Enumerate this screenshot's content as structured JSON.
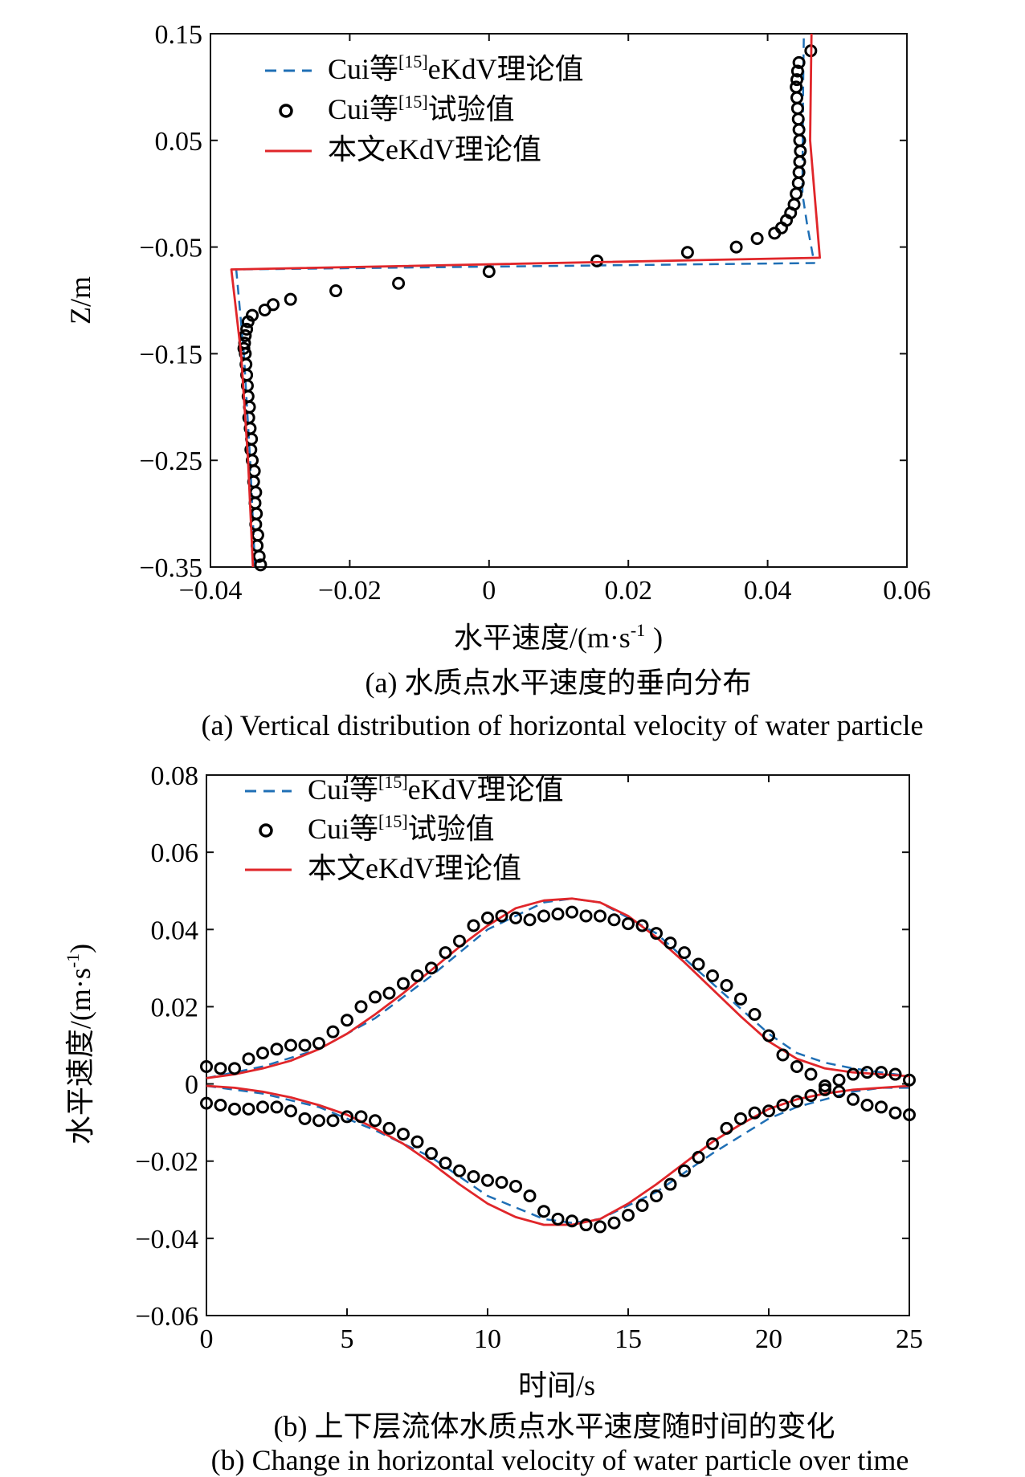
{
  "chart_data": [
    {
      "type": "line",
      "xlabel": "水平速度/(m·s",
      "xlabel_sup": "-1",
      "xlabel_end": ")",
      "ylabel": "Z/m",
      "xlim": [
        -0.04,
        0.06
      ],
      "ylim": [
        -0.35,
        0.15
      ],
      "xticks": [
        -0.04,
        -0.02,
        0,
        0.02,
        0.04,
        0.06
      ],
      "xtick_labels": [
        "−0.04",
        "−0.02",
        "0",
        "0.02",
        "0.04",
        "0.06"
      ],
      "yticks": [
        0.15,
        0.05,
        -0.05,
        -0.15,
        -0.25,
        -0.35
      ],
      "ytick_labels": [
        "0.15",
        "0.05",
        "−0.05",
        "−0.15",
        "−0.25",
        "−0.35"
      ],
      "caption_cn": "(a) 水质点水平速度的垂向分布",
      "caption_en": "(a) Vertical distribution of horizontal velocity of water particle",
      "legend_position": "top-left",
      "legend": [
        {
          "pre": "Cui等",
          "sup": "[15]",
          "post": "eKdV理论值",
          "style": "dashed",
          "color": "#1f6fb5"
        },
        {
          "pre": "Cui等",
          "sup": "[15]",
          "post": "试验值",
          "style": "circle",
          "color": "#000000"
        },
        {
          "pre": "本文eKdV理论值",
          "sup": "",
          "post": "",
          "style": "solid",
          "color": "#e0262a"
        }
      ],
      "series": [
        {
          "name": "Cui等[15]eKdV理论值",
          "style": "dashed",
          "color": "#1f6fb5",
          "x": [
            -0.0336,
            -0.0343,
            -0.0352,
            -0.0363,
            0.0467,
            0.0457,
            0.045,
            0.0451,
            0.0452
          ],
          "y": [
            -0.35,
            -0.25,
            -0.15,
            -0.071,
            -0.065,
            -0.03,
            0.0,
            0.1,
            0.15
          ]
        },
        {
          "name": "Cui等[15]试验值",
          "style": "circle",
          "color": "#000000",
          "x": [
            -0.0328,
            -0.033,
            -0.0333,
            -0.0332,
            -0.0335,
            -0.0334,
            -0.0336,
            -0.0335,
            -0.0338,
            -0.0337,
            -0.034,
            -0.0342,
            -0.0341,
            -0.0343,
            -0.0345,
            -0.0344,
            -0.0346,
            -0.0347,
            -0.0348,
            -0.0349,
            -0.035,
            -0.0352,
            -0.0351,
            -0.035,
            -0.0348,
            -0.0346,
            -0.034,
            -0.0322,
            -0.031,
            -0.0285,
            -0.022,
            -0.013,
            0.0,
            0.0155,
            0.0285,
            0.0355,
            0.0385,
            0.041,
            0.042,
            0.0427,
            0.0433,
            0.0438,
            0.0441,
            0.0444,
            0.0445,
            0.0446,
            0.0447,
            0.0446,
            0.0445,
            0.0444,
            0.0443,
            0.0442,
            0.0441,
            0.0442,
            0.0443,
            0.0445,
            0.0462
          ],
          "y": [
            -0.348,
            -0.34,
            -0.33,
            -0.32,
            -0.31,
            -0.3,
            -0.29,
            -0.28,
            -0.27,
            -0.26,
            -0.25,
            -0.24,
            -0.23,
            -0.22,
            -0.21,
            -0.2,
            -0.19,
            -0.18,
            -0.17,
            -0.16,
            -0.15,
            -0.145,
            -0.14,
            -0.133,
            -0.127,
            -0.12,
            -0.114,
            -0.109,
            -0.104,
            -0.099,
            -0.091,
            -0.084,
            -0.073,
            -0.063,
            -0.055,
            -0.05,
            -0.042,
            -0.037,
            -0.032,
            -0.025,
            -0.018,
            -0.01,
            0.0,
            0.01,
            0.02,
            0.03,
            0.04,
            0.05,
            0.06,
            0.07,
            0.08,
            0.09,
            0.1,
            0.107,
            0.115,
            0.123,
            0.134
          ]
        },
        {
          "name": "本文eKdV理论值",
          "style": "solid",
          "color": "#e0262a",
          "x": [
            -0.0339,
            -0.0346,
            -0.0356,
            -0.037,
            0.0475,
            0.0461,
            0.0463
          ],
          "y": [
            -0.35,
            -0.25,
            -0.15,
            -0.071,
            -0.06,
            0.05,
            0.15
          ]
        }
      ]
    },
    {
      "type": "line",
      "xlabel": "时间/s",
      "ylabel": "水平速度/(m·s",
      "ylabel_sup": "-1",
      "ylabel_end": ")",
      "xlim": [
        0,
        25
      ],
      "ylim": [
        -0.06,
        0.08
      ],
      "xticks": [
        0,
        5,
        10,
        15,
        20,
        25
      ],
      "xtick_labels": [
        "0",
        "5",
        "10",
        "15",
        "20",
        "25"
      ],
      "yticks": [
        0.08,
        0.06,
        0.04,
        0.02,
        0,
        -0.02,
        -0.04,
        -0.06
      ],
      "ytick_labels": [
        "0.08",
        "0.06",
        "0.04",
        "0.02",
        "0",
        "−0.02",
        "−0.04",
        "−0.06"
      ],
      "caption_cn": "(b) 上下层流体水质点水平速度随时间的变化",
      "caption_en": "(b) Change in horizontal velocity of water particle over time",
      "legend_position": "top-left",
      "legend": [
        {
          "pre": "Cui等",
          "sup": "[15]",
          "post": "eKdV理论值",
          "style": "dashed",
          "color": "#1f6fb5"
        },
        {
          "pre": "Cui等",
          "sup": "[15]",
          "post": "试验值",
          "style": "circle",
          "color": "#000000"
        },
        {
          "pre": "本文eKdV理论值",
          "sup": "",
          "post": "",
          "style": "solid",
          "color": "#e0262a"
        }
      ],
      "series": [
        {
          "name": "Cui等[15]eKdV理论值 (上层)",
          "style": "dashed",
          "color": "#1f6fb5",
          "x": [
            0,
            2,
            4,
            6,
            8,
            10,
            12,
            13,
            14,
            16,
            18,
            20,
            21,
            22,
            23,
            24,
            25
          ],
          "y": [
            0.0015,
            0.0045,
            0.009,
            0.017,
            0.028,
            0.04,
            0.047,
            0.048,
            0.047,
            0.039,
            0.026,
            0.013,
            0.008,
            0.0055,
            0.004,
            0.003,
            0.002
          ]
        },
        {
          "name": "Cui等[15]eKdV理论值 (下层)",
          "style": "dashed",
          "color": "#1f6fb5",
          "x": [
            0,
            2,
            4,
            6,
            8,
            10,
            12,
            13,
            14,
            16,
            18,
            20,
            21,
            22,
            23,
            24,
            25
          ],
          "y": [
            -0.0005,
            -0.0025,
            -0.006,
            -0.012,
            -0.019,
            -0.029,
            -0.035,
            -0.036,
            -0.035,
            -0.028,
            -0.018,
            -0.009,
            -0.006,
            -0.004,
            -0.002,
            -0.001,
            -0.001
          ]
        },
        {
          "name": "本文eKdV理论值 (上层)",
          "style": "solid",
          "color": "#e0262a",
          "x": [
            0,
            1,
            2,
            3,
            4,
            5,
            6,
            7,
            8,
            9,
            10,
            11,
            12,
            13,
            14,
            15,
            16,
            17,
            18,
            19,
            20,
            21,
            22,
            23,
            24,
            25
          ],
          "y": [
            0.0015,
            0.0025,
            0.004,
            0.006,
            0.009,
            0.013,
            0.018,
            0.0235,
            0.0295,
            0.0355,
            0.041,
            0.0455,
            0.0475,
            0.048,
            0.047,
            0.0435,
            0.038,
            0.0315,
            0.0245,
            0.0175,
            0.011,
            0.0065,
            0.004,
            0.003,
            0.0025,
            0.002
          ]
        },
        {
          "name": "本文eKdV理论值 (下层)",
          "style": "solid",
          "color": "#e0262a",
          "x": [
            0,
            1,
            2,
            3,
            4,
            5,
            6,
            7,
            8,
            9,
            10,
            11,
            12,
            13,
            14,
            15,
            16,
            17,
            18,
            19,
            20,
            21,
            22,
            23,
            24,
            25
          ],
          "y": [
            -0.0005,
            -0.001,
            -0.002,
            -0.0035,
            -0.0055,
            -0.008,
            -0.0115,
            -0.0155,
            -0.0205,
            -0.026,
            -0.031,
            -0.0345,
            -0.0365,
            -0.0365,
            -0.035,
            -0.031,
            -0.026,
            -0.0205,
            -0.015,
            -0.0105,
            -0.0065,
            -0.004,
            -0.0025,
            -0.0015,
            -0.001,
            -0.0005
          ]
        },
        {
          "name": "Cui等[15]试验值 (上层)",
          "style": "circle",
          "color": "#000000",
          "x": [
            0,
            0.5,
            1,
            1.5,
            2,
            2.5,
            3,
            3.5,
            4,
            4.5,
            5,
            5.5,
            6,
            6.5,
            7,
            7.5,
            8,
            8.5,
            9,
            9.5,
            10,
            10.5,
            11,
            11.5,
            12,
            12.5,
            13,
            13.5,
            14,
            14.5,
            15,
            15.5,
            16,
            16.5,
            17,
            17.5,
            18,
            18.5,
            19,
            19.5,
            20,
            20.5,
            21,
            21.5,
            22,
            22.5,
            23,
            23.5,
            24,
            24.5,
            25
          ],
          "y": [
            0.0045,
            0.004,
            0.004,
            0.0065,
            0.008,
            0.009,
            0.01,
            0.01,
            0.0105,
            0.0135,
            0.0165,
            0.02,
            0.0225,
            0.0235,
            0.026,
            0.028,
            0.03,
            0.034,
            0.037,
            0.041,
            0.043,
            0.0435,
            0.043,
            0.0425,
            0.0435,
            0.044,
            0.0445,
            0.0435,
            0.0435,
            0.0425,
            0.0415,
            0.041,
            0.039,
            0.0365,
            0.034,
            0.031,
            0.028,
            0.0255,
            0.022,
            0.018,
            0.0125,
            0.0075,
            0.0045,
            0.0025,
            -0.0005,
            -0.002,
            -0.004,
            -0.0055,
            -0.006,
            -0.0075,
            -0.008
          ]
        },
        {
          "name": "Cui等[15]试验值 (下层)",
          "style": "circle",
          "color": "#000000",
          "x": [
            0,
            0.5,
            1,
            1.5,
            2,
            2.5,
            3,
            3.5,
            4,
            4.5,
            5,
            5.5,
            6,
            6.5,
            7,
            7.5,
            8,
            8.5,
            9,
            9.5,
            10,
            10.5,
            11,
            11.5,
            12,
            12.5,
            13,
            13.5,
            14,
            14.5,
            15,
            15.5,
            16,
            16.5,
            17,
            17.5,
            18,
            18.5,
            19,
            19.5,
            20,
            20.5,
            21,
            21.5,
            22,
            22.5,
            23,
            23.5,
            24,
            24.5,
            25
          ],
          "y": [
            -0.005,
            -0.0055,
            -0.0065,
            -0.0065,
            -0.006,
            -0.006,
            -0.007,
            -0.009,
            -0.0095,
            -0.0095,
            -0.0085,
            -0.0085,
            -0.0095,
            -0.0115,
            -0.013,
            -0.015,
            -0.018,
            -0.0205,
            -0.0225,
            -0.024,
            -0.025,
            -0.0255,
            -0.0265,
            -0.029,
            -0.033,
            -0.035,
            -0.0355,
            -0.0365,
            -0.037,
            -0.036,
            -0.034,
            -0.0315,
            -0.029,
            -0.026,
            -0.0225,
            -0.019,
            -0.0155,
            -0.0115,
            -0.009,
            -0.0075,
            -0.007,
            -0.0055,
            -0.0045,
            -0.003,
            -0.0015,
            0.001,
            0.0025,
            0.003,
            0.003,
            0.0025,
            0.001
          ]
        }
      ]
    }
  ]
}
